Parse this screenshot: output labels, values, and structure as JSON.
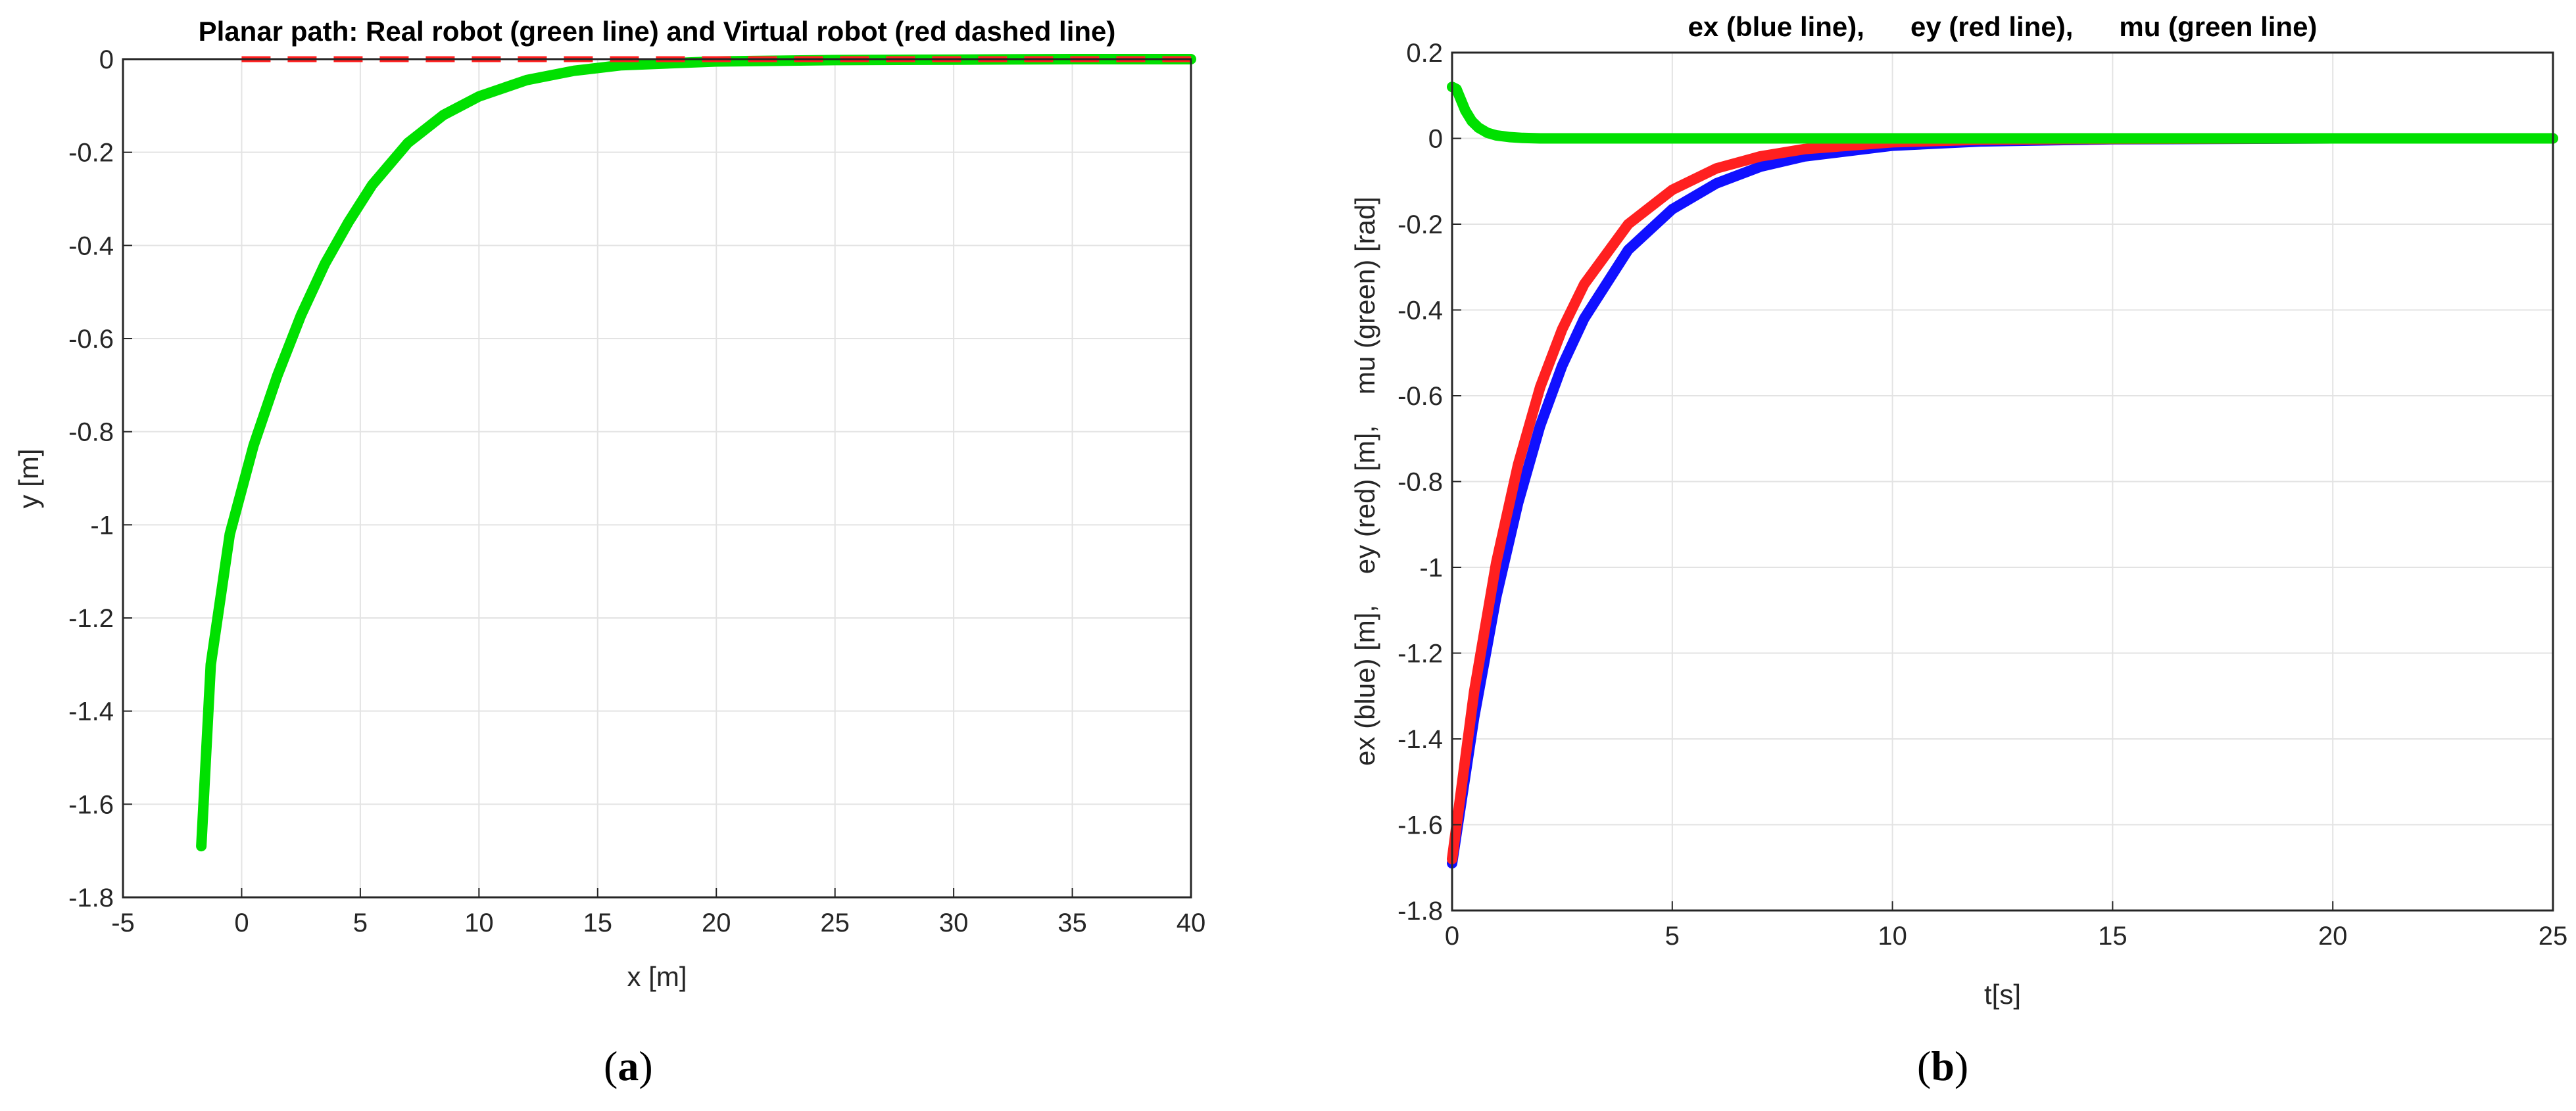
{
  "chart_data": [
    {
      "type": "line",
      "title": "Planar path: Real robot (green line) and Virtual robot (red dashed line)",
      "xlabel": "x [m]",
      "ylabel": "y [m]",
      "xlim": [
        -5,
        40
      ],
      "ylim": [
        -1.8,
        0
      ],
      "xticks": [
        -5,
        0,
        5,
        10,
        15,
        20,
        25,
        30,
        35,
        40
      ],
      "yticks": [
        -1.8,
        -1.6,
        -1.4,
        -1.2,
        -1,
        -0.8,
        -0.6,
        -0.4,
        -0.2,
        0
      ],
      "xtick_labels": [
        "-5",
        "0",
        "5",
        "10",
        "15",
        "20",
        "25",
        "30",
        "35",
        "40"
      ],
      "ytick_labels": [
        "-1.8",
        "-1.6",
        "-1.4",
        "-1.2",
        "-1",
        "-0.8",
        "-0.6",
        "-0.4",
        "-0.2",
        "0"
      ],
      "grid": true,
      "series": [
        {
          "color": "#00e000",
          "style": "solid",
          "x": [
            -1.7,
            -1.3,
            -0.5,
            0.5,
            1.5,
            2.5,
            3.5,
            4.5,
            5.5,
            7,
            8.5,
            10,
            12,
            14,
            16,
            20,
            25,
            30,
            35,
            40
          ],
          "y": [
            -1.69,
            -1.3,
            -1.02,
            -0.83,
            -0.68,
            -0.55,
            -0.44,
            -0.35,
            -0.27,
            -0.18,
            -0.12,
            -0.08,
            -0.045,
            -0.025,
            -0.013,
            -0.005,
            -0.002,
            -0.001,
            0,
            0
          ]
        },
        {
          "color": "#ff2020",
          "style": "dashed",
          "x": [
            0,
            40
          ],
          "y": [
            0,
            0
          ]
        }
      ]
    },
    {
      "type": "line",
      "title": "ex (blue line),      ey (red line),      mu (green line)",
      "xlabel": "t[s]",
      "ylabel": "ex (blue) [m],    ey (red) [m],    mu (green) [rad]",
      "xlim": [
        0,
        25
      ],
      "ylim": [
        -1.8,
        0.2
      ],
      "xticks": [
        0,
        5,
        10,
        15,
        20,
        25
      ],
      "yticks": [
        -1.8,
        -1.6,
        -1.4,
        -1.2,
        -1,
        -0.8,
        -0.6,
        -0.4,
        -0.2,
        0,
        0.2
      ],
      "xtick_labels": [
        "0",
        "5",
        "10",
        "15",
        "20",
        "25"
      ],
      "ytick_labels": [
        "-1.8",
        "-1.6",
        "-1.4",
        "-1.2",
        "-1",
        "-0.8",
        "-0.6",
        "-0.4",
        "-0.2",
        "0",
        "0.2"
      ],
      "grid": true,
      "series": [
        {
          "color": "#1010ff",
          "style": "solid",
          "x": [
            0,
            0.5,
            1,
            1.5,
            2,
            2.5,
            3,
            4,
            5,
            6,
            7,
            8,
            10,
            12,
            15,
            20,
            25
          ],
          "y": [
            -1.69,
            -1.35,
            -1.07,
            -0.85,
            -0.67,
            -0.53,
            -0.42,
            -0.26,
            -0.165,
            -0.105,
            -0.066,
            -0.042,
            -0.017,
            -0.007,
            -0.002,
            0,
            0
          ]
        },
        {
          "color": "#ff2020",
          "style": "solid",
          "x": [
            0,
            0.5,
            1,
            1.5,
            2,
            2.5,
            3,
            4,
            5,
            6,
            7,
            8,
            10,
            12,
            15,
            20,
            25
          ],
          "y": [
            -1.68,
            -1.29,
            -0.99,
            -0.76,
            -0.58,
            -0.445,
            -0.34,
            -0.2,
            -0.12,
            -0.07,
            -0.042,
            -0.025,
            -0.009,
            -0.003,
            -0.001,
            0,
            0
          ]
        },
        {
          "color": "#00e000",
          "style": "solid",
          "x": [
            0,
            0.1,
            0.2,
            0.3,
            0.45,
            0.6,
            0.8,
            1,
            1.3,
            1.6,
            2,
            3,
            5,
            10,
            15,
            20,
            25
          ],
          "y": [
            0.12,
            0.115,
            0.09,
            0.065,
            0.04,
            0.025,
            0.013,
            0.007,
            0.003,
            0.001,
            0,
            0,
            0,
            0,
            0,
            0,
            0
          ]
        }
      ]
    }
  ],
  "panel_labels": [
    "(a)",
    "(b)"
  ],
  "panel_label_letters": [
    "a",
    "b"
  ]
}
